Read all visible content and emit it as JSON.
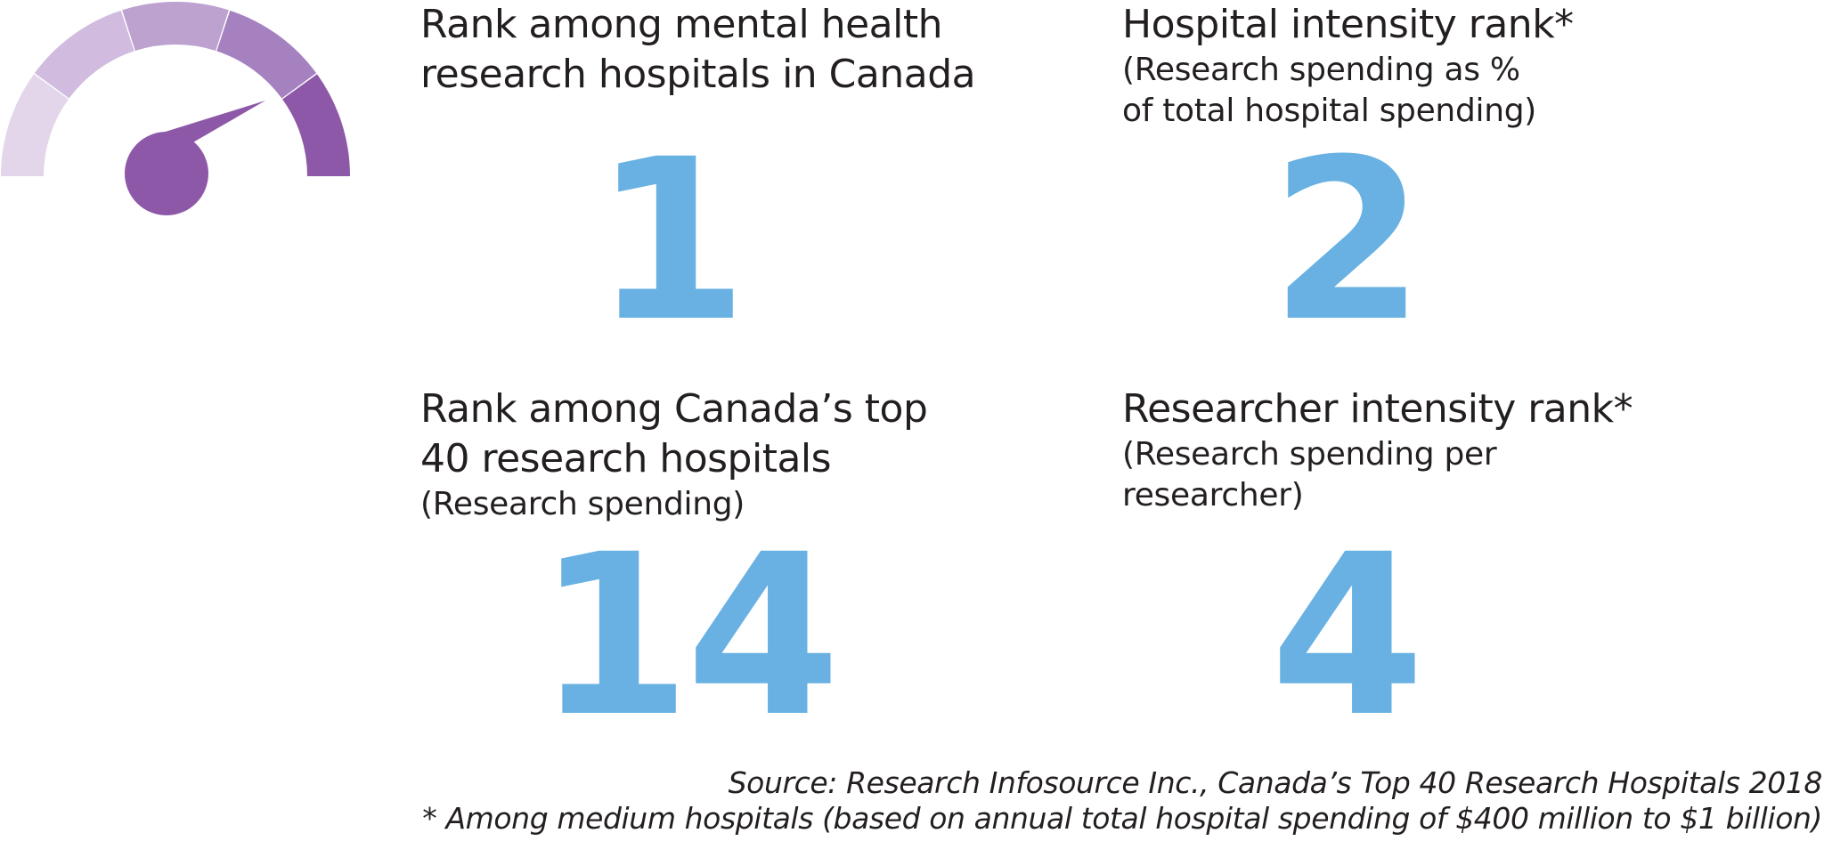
{
  "gauge": {
    "icon": "speedometer-gauge-icon",
    "colors": [
      "#e3d6ea",
      "#d1bcdf",
      "#bda2d0",
      "#a681bf",
      "#8d58a8"
    ]
  },
  "cards": [
    {
      "title": "Rank among mental health research hospitals in Canada",
      "title_lines": [
        "Rank among mental health",
        "research hospitals in Canada"
      ],
      "subtitle_lines": [],
      "value": "1"
    },
    {
      "title": "Hospital intensity rank*",
      "title_lines": [
        "Hospital intensity rank*"
      ],
      "subtitle_lines": [
        "(Research spending as %",
        "of total hospital spending)"
      ],
      "value": "2"
    },
    {
      "title": "Rank among Canada’s top 40 research hospitals",
      "title_lines": [
        "Rank among Canada’s top",
        "40 research hospitals"
      ],
      "subtitle_lines": [
        "(Research spending)"
      ],
      "value": "14"
    },
    {
      "title": "Researcher intensity rank*",
      "title_lines": [
        "Researcher intensity rank*"
      ],
      "subtitle_lines": [
        "(Research spending per",
        "researcher)"
      ],
      "value": "4"
    }
  ],
  "footer": {
    "source": "Source: Research Infosource Inc., Canada’s Top 40 Research Hospitals 2018",
    "note": "* Among medium hospitals (based on annual total hospital spending of $400 million to $1 billion)"
  },
  "colors": {
    "number": "#68b1e2",
    "text": "#231f20",
    "accent": "#8d58a8"
  }
}
